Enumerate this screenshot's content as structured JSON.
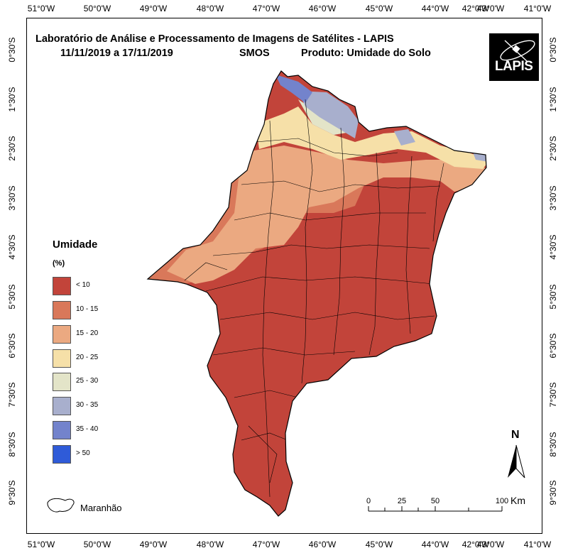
{
  "title": {
    "line1": "Laboratório de Análise e Processamento de Imagens de Satélites - LAPIS",
    "dates": "11/11/2019  a  17/11/2019",
    "sensor": "SMOS",
    "product": "Produto: Umidade do Solo"
  },
  "logo": {
    "text": "LAPIS"
  },
  "graticule": {
    "longitudes": [
      "51°0'W",
      "50°0'W",
      "49°0'W",
      "48°0'W",
      "47°0'W",
      "46°0'W",
      "45°0'W",
      "44°0'W",
      "43°0'W",
      "42°0'W",
      "41°0'W"
    ],
    "latitudes": [
      "0°30'S",
      "1°30'S",
      "2°30'S",
      "3°30'S",
      "4°30'S",
      "5°30'S",
      "6°30'S",
      "7°30'S",
      "8°30'S",
      "9°30'S"
    ]
  },
  "legend": {
    "title": "Umidade",
    "unit": "(%)",
    "classes": [
      {
        "label": "< 10",
        "color": "#c2443a"
      },
      {
        "label": "10 - 15",
        "color": "#d9785a"
      },
      {
        "label": "15 - 20",
        "color": "#eba981"
      },
      {
        "label": "20 - 25",
        "color": "#f6e0a8"
      },
      {
        "label": "25 - 30",
        "color": "#e3e4c8"
      },
      {
        "label": "30 - 35",
        "color": "#a8afcd"
      },
      {
        "label": "35 - 40",
        "color": "#7383cc"
      },
      {
        "label": "> 50",
        "color": "#2f5bd8"
      }
    ]
  },
  "boundary_legend": {
    "label": "Maranhão"
  },
  "north_arrow": {
    "label": "N"
  },
  "scale_bar": {
    "ticks": [
      "0",
      "25",
      "50",
      "100"
    ],
    "unit": "Km"
  }
}
